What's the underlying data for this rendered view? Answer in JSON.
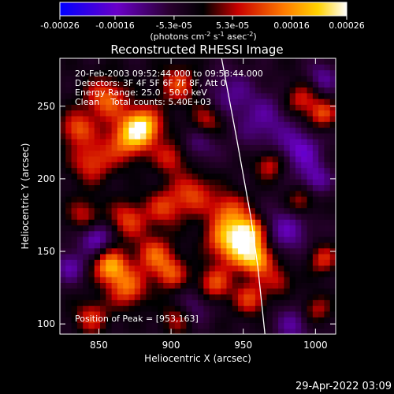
{
  "chart_data": {
    "type": "heatmap",
    "title": "Reconstructed RHESSI Image",
    "xlabel": "Heliocentric X (arcsec)",
    "ylabel": "Heliocentric Y (arcsec)",
    "xlim": [
      823,
      1014
    ],
    "ylim": [
      93,
      283
    ],
    "x_ticks": [
      850,
      900,
      950,
      1000
    ],
    "y_ticks": [
      100,
      150,
      200,
      250
    ],
    "colorbar": {
      "label_main": "(photons cm",
      "label_exp1": "-2",
      "label_mid": " s",
      "label_exp2": "-1",
      "label_end": " asec",
      "label_exp3": "-2",
      "label_close": ")",
      "tick_labels": [
        "-0.00026",
        "-0.00016",
        "-5.3e-05",
        "5.3e-05",
        "0.00016",
        "0.00026"
      ],
      "tick_values": [
        -0.00026,
        -0.00016,
        -5.3e-05,
        5.3e-05,
        0.00016,
        0.00026
      ],
      "range": [
        -0.00026,
        0.00026
      ],
      "colors": [
        "#0000ff",
        "#6a00c8",
        "#2a0030",
        "#000000",
        "#c80000",
        "#ff7a00",
        "#ffd200",
        "#ffffff"
      ]
    },
    "annotations": [
      "20-Feb-2003 09:52:44.000 to 09:58:44.000",
      "Detectors: 3F 4F 5F 6F 7F 8F, Att 0",
      "Energy Range: 25.0 - 50.0 keV",
      "Clean    Total counts: 5.40E+03",
      "Position of Peak = [953,163]"
    ],
    "peak": {
      "x": 953,
      "y": 163
    },
    "limb_curve": [
      [
        935,
        283
      ],
      [
        945,
        230
      ],
      [
        955,
        175
      ],
      [
        960,
        140
      ],
      [
        965,
        93
      ]
    ],
    "blobs": [
      {
        "x": 880,
        "y": 236,
        "v": 1.0,
        "s": 9
      },
      {
        "x": 868,
        "y": 226,
        "v": 0.55,
        "s": 10
      },
      {
        "x": 855,
        "y": 255,
        "v": 0.6,
        "s": 10
      },
      {
        "x": 835,
        "y": 235,
        "v": 0.55,
        "s": 8
      },
      {
        "x": 845,
        "y": 212,
        "v": 0.5,
        "s": 10
      },
      {
        "x": 905,
        "y": 265,
        "v": 0.5,
        "s": 9
      },
      {
        "x": 900,
        "y": 215,
        "v": 0.45,
        "s": 8
      },
      {
        "x": 915,
        "y": 190,
        "v": 0.5,
        "s": 10
      },
      {
        "x": 895,
        "y": 180,
        "v": 0.45,
        "s": 9
      },
      {
        "x": 870,
        "y": 172,
        "v": 0.5,
        "s": 9
      },
      {
        "x": 840,
        "y": 175,
        "v": 0.4,
        "s": 8
      },
      {
        "x": 940,
        "y": 178,
        "v": 0.55,
        "s": 9
      },
      {
        "x": 953,
        "y": 163,
        "v": 1.0,
        "s": 8
      },
      {
        "x": 960,
        "y": 145,
        "v": 0.8,
        "s": 8
      },
      {
        "x": 945,
        "y": 150,
        "v": 0.55,
        "s": 9
      },
      {
        "x": 935,
        "y": 160,
        "v": 0.5,
        "s": 9
      },
      {
        "x": 858,
        "y": 140,
        "v": 0.8,
        "s": 8
      },
      {
        "x": 870,
        "y": 125,
        "v": 0.6,
        "s": 9
      },
      {
        "x": 888,
        "y": 148,
        "v": 0.55,
        "s": 9
      },
      {
        "x": 900,
        "y": 135,
        "v": 0.5,
        "s": 8
      },
      {
        "x": 930,
        "y": 128,
        "v": 0.55,
        "s": 8
      },
      {
        "x": 955,
        "y": 118,
        "v": 0.5,
        "s": 8
      },
      {
        "x": 845,
        "y": 105,
        "v": 0.45,
        "s": 8
      },
      {
        "x": 905,
        "y": 105,
        "v": 0.4,
        "s": 8
      },
      {
        "x": 925,
        "y": 240,
        "v": 0.45,
        "s": 8
      },
      {
        "x": 990,
        "y": 255,
        "v": 0.45,
        "s": 8
      },
      {
        "x": 1005,
        "y": 245,
        "v": 0.5,
        "s": 7
      },
      {
        "x": 968,
        "y": 210,
        "v": 0.45,
        "s": 7
      },
      {
        "x": 990,
        "y": 185,
        "v": 0.4,
        "s": 7
      },
      {
        "x": 1005,
        "y": 145,
        "v": 0.45,
        "s": 7
      },
      {
        "x": 1000,
        "y": 110,
        "v": 0.4,
        "s": 7
      },
      {
        "x": 975,
        "y": 130,
        "v": 0.35,
        "s": 7
      },
      {
        "x": 980,
        "y": 165,
        "v": -0.4,
        "s": 12
      },
      {
        "x": 965,
        "y": 240,
        "v": -0.35,
        "s": 14
      },
      {
        "x": 990,
        "y": 220,
        "v": -0.45,
        "s": 10
      },
      {
        "x": 940,
        "y": 260,
        "v": -0.3,
        "s": 12
      },
      {
        "x": 920,
        "y": 225,
        "v": -0.3,
        "s": 10
      },
      {
        "x": 830,
        "y": 140,
        "v": -0.4,
        "s": 8
      },
      {
        "x": 848,
        "y": 160,
        "v": -0.5,
        "s": 8
      },
      {
        "x": 915,
        "y": 112,
        "v": -0.35,
        "s": 9
      },
      {
        "x": 985,
        "y": 100,
        "v": -0.35,
        "s": 10
      },
      {
        "x": 1000,
        "y": 200,
        "v": -0.4,
        "s": 8
      },
      {
        "x": 1005,
        "y": 270,
        "v": -0.35,
        "s": 8
      }
    ]
  },
  "footer": {
    "date_stamp": "29-Apr-2022 03:09"
  }
}
